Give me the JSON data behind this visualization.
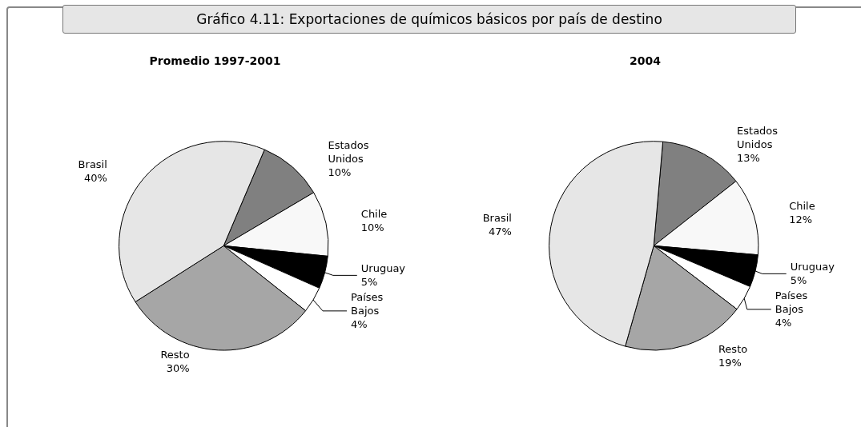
{
  "chart_data": [
    {
      "type": "pie",
      "title": "Promedio 1997-2001",
      "annotations": [
        "Gráfico 4.11: Exportaciones de químicos básicos por país de destino"
      ],
      "categories": [
        "Estados Unidos",
        "Chile",
        "Uruguay",
        "Países Bajos",
        "Resto",
        "Brasil"
      ],
      "values": [
        10,
        10,
        5,
        4,
        30,
        40
      ],
      "value_labels": [
        "10%",
        "10%",
        "5%",
        "4%",
        "30%",
        "40%"
      ],
      "colors": [
        "#808080",
        "#f8f8f8",
        "#000000",
        "#ffffff",
        "#a6a6a6",
        "#e6e6e6"
      ],
      "legend": false
    },
    {
      "type": "pie",
      "title": "2004",
      "categories": [
        "Estados Unidos",
        "Chile",
        "Uruguay",
        "Países Bajos",
        "Resto",
        "Brasil"
      ],
      "values": [
        13,
        12,
        5,
        4,
        19,
        47
      ],
      "value_labels": [
        "13%",
        "12%",
        "5%",
        "4%",
        "19%",
        "47%"
      ],
      "colors": [
        "#808080",
        "#f8f8f8",
        "#000000",
        "#ffffff",
        "#a6a6a6",
        "#e6e6e6"
      ],
      "legend": false
    }
  ]
}
